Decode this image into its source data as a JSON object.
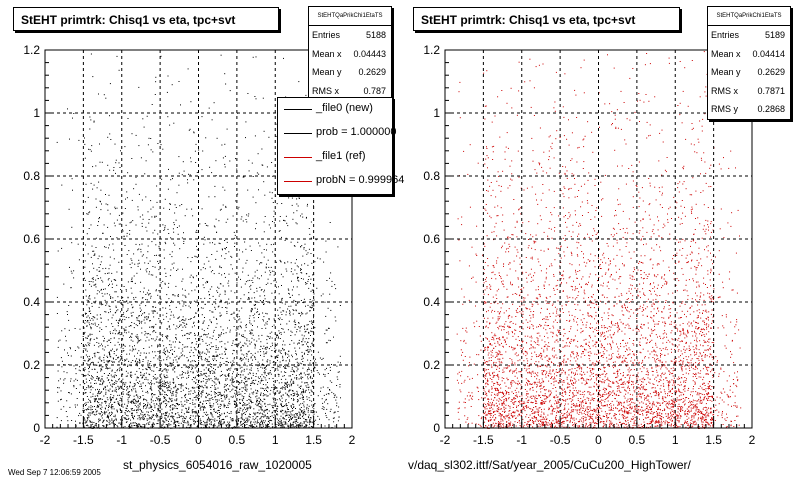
{
  "chart_data": [
    {
      "type": "scatter",
      "title": "StEHT primtrk: Chisq1 vs eta, tpc+svt",
      "file_title": "st_physics_6054016_raw_1020005",
      "xlim": [
        -2,
        2
      ],
      "ylim": [
        0,
        1.2
      ],
      "x_ticks": [
        "-2",
        "-1.5",
        "-1",
        "-0.5",
        "0",
        "0.5",
        "1",
        "1.5",
        "2"
      ],
      "y_ticks": [
        "0",
        "0.2",
        "0.4",
        "0.6",
        "0.8",
        "1",
        "1.2"
      ],
      "grid": true,
      "marker_color": "#000000",
      "stats": {
        "header": "StEHTQaPrikChi1EtaTS",
        "rows": [
          {
            "label": "Entries",
            "value": "5188"
          },
          {
            "label": "Mean x",
            "value": "0.04443"
          },
          {
            "label": "Mean y",
            "value": "0.2629"
          },
          {
            "label": "RMS x",
            "value": "0.787"
          }
        ]
      },
      "legend": {
        "placement": "top-right",
        "entries": [
          {
            "label": "_file0 (new)",
            "color": "#000000"
          },
          {
            "label": "prob = 1.000000",
            "color": "#000000"
          },
          {
            "label": "_file1 (ref)",
            "color": "#cc0000"
          },
          {
            "label": "probN = 0.999964",
            "color": "#cc0000"
          }
        ]
      },
      "distribution": {
        "x_range": [
          -1.5,
          1.5
        ],
        "entries": 5188,
        "mean_y": 0.2629
      }
    },
    {
      "type": "scatter",
      "title": "StEHT primtrk: Chisq1 vs eta, tpc+svt",
      "file_title": "v/daq_sl302.ittf/Sat/year_2005/CuCu200_HighTower/",
      "xlim": [
        -2,
        2
      ],
      "ylim": [
        0,
        1.2
      ],
      "x_ticks": [
        "-2",
        "-1.5",
        "-1",
        "-0.5",
        "0",
        "0.5",
        "1",
        "1.5",
        "2"
      ],
      "y_ticks": [
        "0",
        "0.2",
        "0.4",
        "0.6",
        "0.8",
        "1",
        "1.2"
      ],
      "grid": true,
      "marker_color": "#cc0000",
      "stats": {
        "header": "StEHTQaPrikChi1EtaTS",
        "rows": [
          {
            "label": "Entries",
            "value": "5189"
          },
          {
            "label": "Mean x",
            "value": "0.04414"
          },
          {
            "label": "Mean y",
            "value": "0.2629"
          },
          {
            "label": "RMS x",
            "value": "0.7871"
          },
          {
            "label": "RMS y",
            "value": "0.2868"
          }
        ]
      },
      "distribution": {
        "x_range": [
          -1.5,
          1.5
        ],
        "entries": 5189,
        "mean_y": 0.2629
      }
    }
  ],
  "footer_date": "Wed Sep 7 12:06:59 2005"
}
